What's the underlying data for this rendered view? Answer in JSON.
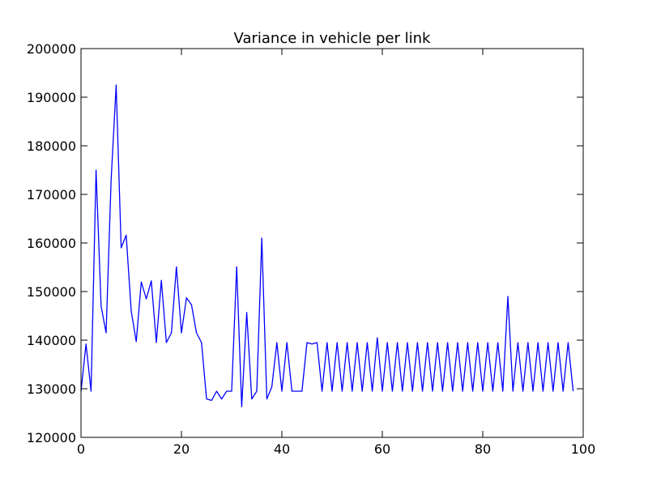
{
  "chart_data": {
    "type": "line",
    "title": "Variance in vehicle per link",
    "xlabel": "",
    "ylabel": "",
    "xlim": [
      0,
      100
    ],
    "ylim": [
      120000,
      200000
    ],
    "x_ticks": [
      0,
      20,
      40,
      60,
      80,
      100
    ],
    "y_ticks": [
      120000,
      130000,
      140000,
      150000,
      160000,
      170000,
      180000,
      190000,
      200000
    ],
    "x_tick_labels": [
      "0",
      "20",
      "40",
      "60",
      "80",
      "100"
    ],
    "y_tick_labels": [
      "120000",
      "130000",
      "140000",
      "150000",
      "160000",
      "170000",
      "180000",
      "190000",
      "200000"
    ],
    "grid": false,
    "legend": "none",
    "series": [
      {
        "color": "#0000ff",
        "x": [
          0,
          1,
          2,
          3,
          4,
          5,
          6,
          7,
          8,
          9,
          10,
          11,
          12,
          13,
          14,
          15,
          16,
          17,
          18,
          19,
          20,
          21,
          22,
          23,
          24,
          25,
          26,
          27,
          28,
          29,
          30,
          31,
          32,
          33,
          34,
          35,
          36,
          37,
          38,
          39,
          40,
          41,
          42,
          43,
          44,
          45,
          46,
          47,
          48,
          49,
          50,
          51,
          52,
          53,
          54,
          55,
          56,
          57,
          58,
          59,
          60,
          61,
          62,
          63,
          64,
          65,
          66,
          67,
          68,
          69,
          70,
          71,
          72,
          73,
          74,
          75,
          76,
          77,
          78,
          79,
          80,
          81,
          82,
          83,
          84,
          85,
          86,
          87,
          88,
          89,
          90,
          91,
          92,
          93,
          94,
          95,
          96,
          97,
          98
        ],
        "values": [
          129500,
          139200,
          129500,
          175000,
          147000,
          141500,
          173000,
          192500,
          159000,
          161600,
          146000,
          139700,
          152000,
          148500,
          152200,
          139500,
          152300,
          139500,
          141500,
          155100,
          141500,
          148700,
          147300,
          141500,
          139500,
          127900,
          127600,
          129500,
          127900,
          129500,
          129500,
          155100,
          126300,
          145700,
          127900,
          129500,
          161000,
          127900,
          130400,
          139500,
          129500,
          139500,
          129500,
          129500,
          129500,
          139500,
          139200,
          139500,
          129500,
          139500,
          129500,
          139500,
          129500,
          139500,
          129500,
          139500,
          129500,
          139500,
          129500,
          140500,
          129500,
          139500,
          129500,
          139500,
          129500,
          139500,
          129500,
          139500,
          129500,
          139500,
          129500,
          139500,
          129500,
          139500,
          129500,
          139500,
          129500,
          139500,
          129500,
          139500,
          129500,
          139500,
          129500,
          139500,
          129500,
          149000,
          129500,
          139500,
          129500,
          139500,
          129500,
          139500,
          129500,
          139500,
          129500,
          139500,
          129500,
          139500,
          129500
        ]
      }
    ]
  }
}
